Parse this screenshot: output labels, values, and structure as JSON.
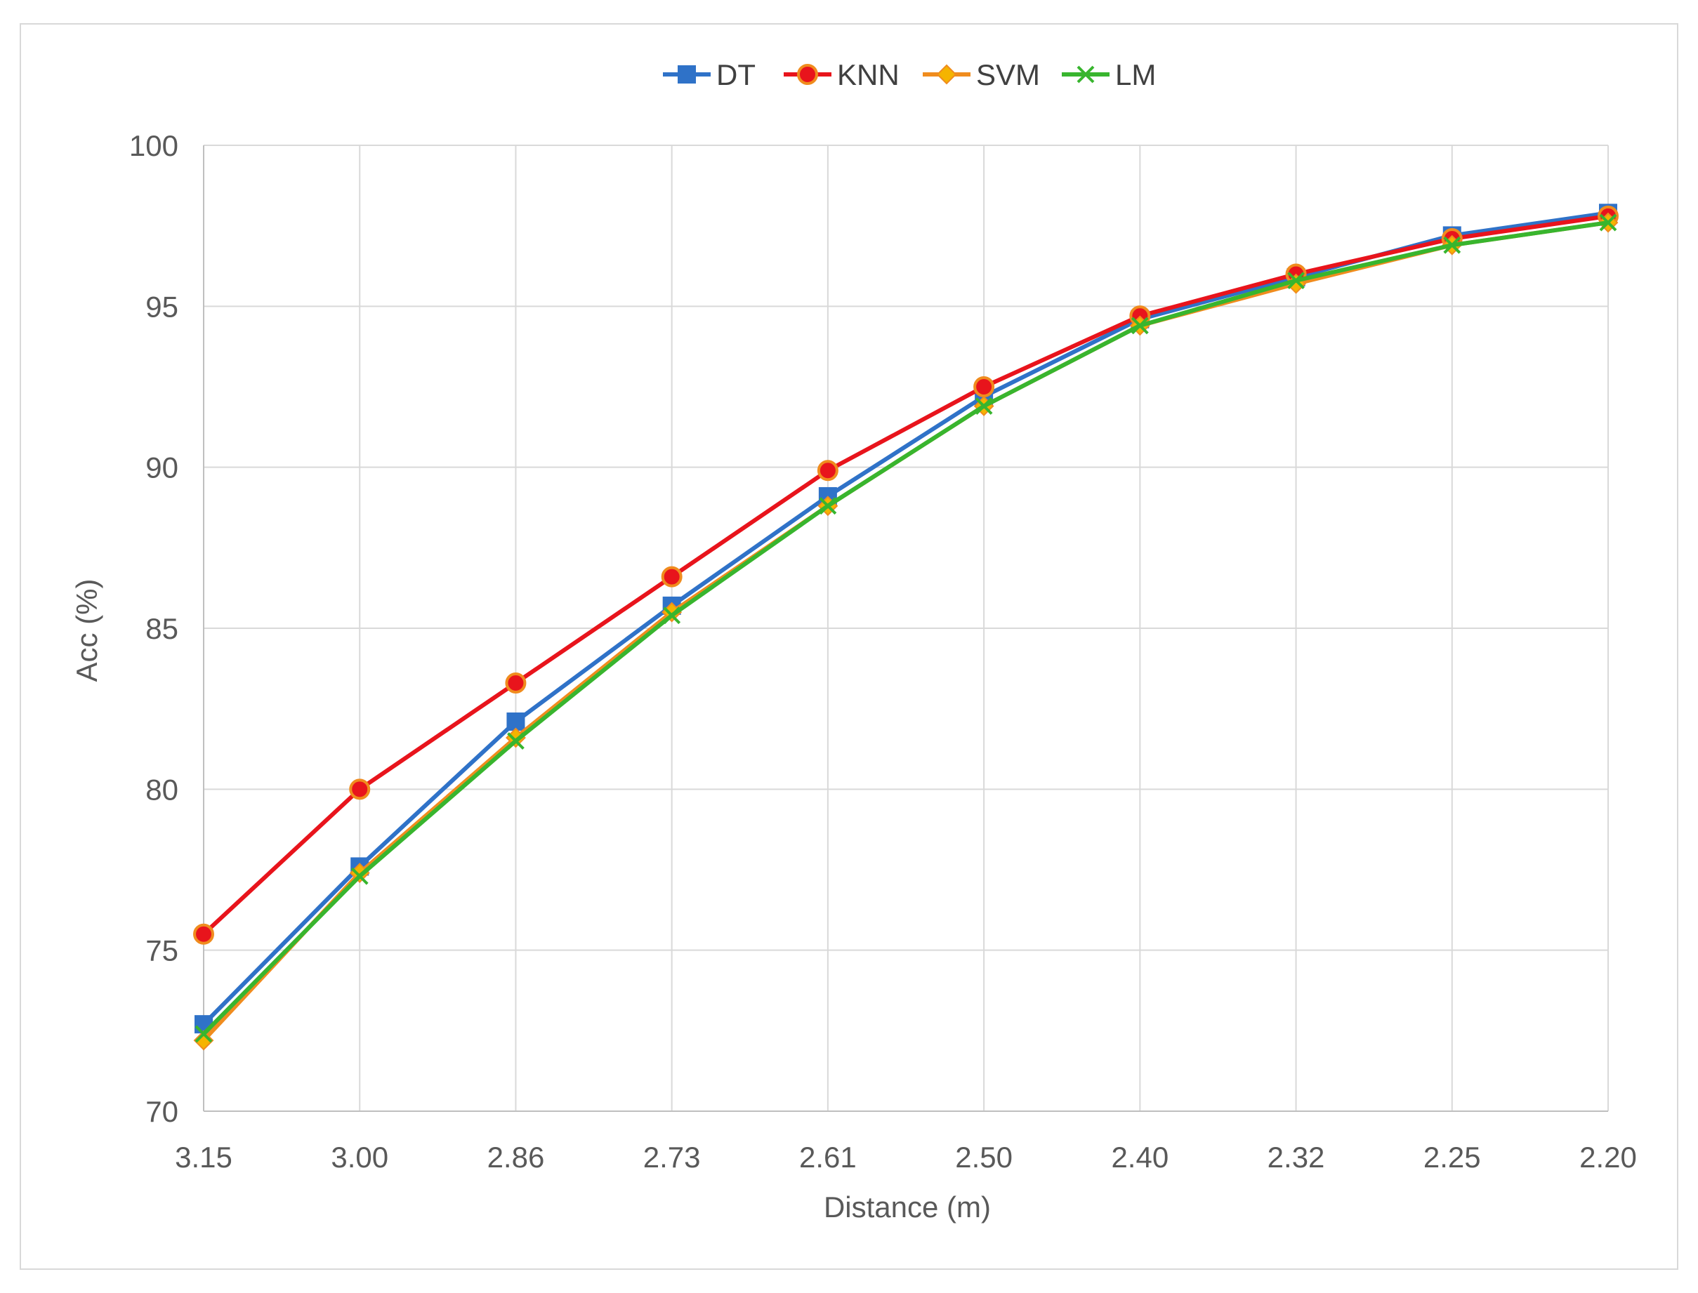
{
  "chart_data": {
    "type": "line",
    "title": "",
    "xlabel": "Distance (m)",
    "ylabel": "Acc (%)",
    "x": [
      "3.15",
      "3.00",
      "2.86",
      "2.73",
      "2.61",
      "2.50",
      "2.40",
      "2.32",
      "2.25",
      "2.20"
    ],
    "ylim": [
      70,
      100
    ],
    "yticks": [
      70,
      75,
      80,
      85,
      90,
      95,
      100
    ],
    "grid": true,
    "legend_position": "top-center",
    "series": [
      {
        "name": "DT",
        "color": "#2f72c8",
        "marker": "square",
        "values": [
          72.7,
          77.6,
          82.1,
          85.7,
          89.1,
          92.2,
          94.6,
          95.9,
          97.2,
          97.9
        ]
      },
      {
        "name": "KNN",
        "color": "#e8141c",
        "marker": "circle",
        "values": [
          75.5,
          80.0,
          83.3,
          86.6,
          89.9,
          92.5,
          94.7,
          96.0,
          97.1,
          97.8
        ]
      },
      {
        "name": "SVM",
        "color": "#f08c1e",
        "marker": "diamond",
        "values": [
          72.2,
          77.4,
          81.6,
          85.5,
          88.8,
          91.9,
          94.4,
          95.7,
          96.9,
          97.6
        ]
      },
      {
        "name": "LM",
        "color": "#38b52e",
        "marker": "x",
        "values": [
          72.4,
          77.3,
          81.5,
          85.4,
          88.8,
          91.9,
          94.4,
          95.8,
          96.9,
          97.6
        ]
      }
    ]
  }
}
